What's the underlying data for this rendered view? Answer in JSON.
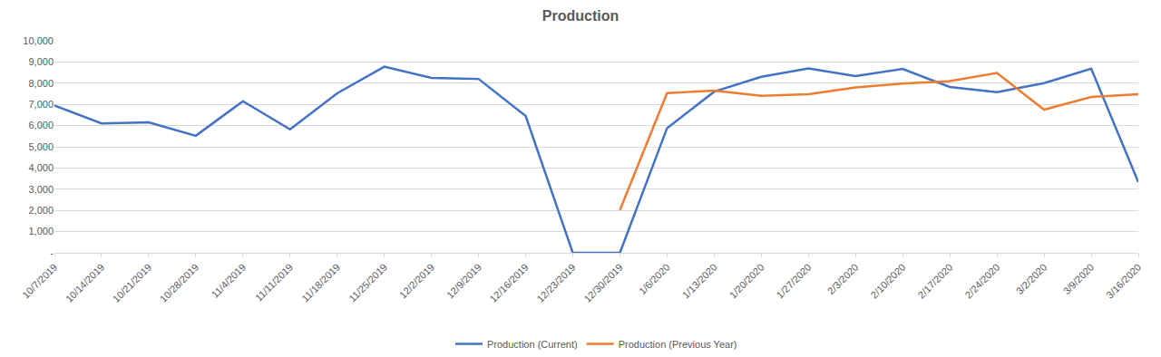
{
  "chart_data": {
    "type": "line",
    "title": "Production",
    "categories": [
      "10/7/2019",
      "10/14/2019",
      "10/21/2019",
      "10/28/2019",
      "11/4/2019",
      "11/11/2019",
      "11/18/2019",
      "11/25/2019",
      "12/2/2019",
      "12/9/2019",
      "12/16/2019",
      "12/23/2019",
      "12/30/2019",
      "1/6/2020",
      "1/13/2020",
      "1/20/2020",
      "1/27/2020",
      "2/3/2020",
      "2/10/2020",
      "2/17/2020",
      "2/24/2020",
      "3/2/2020",
      "3/9/2020",
      "3/16/2020"
    ],
    "series": [
      {
        "name": "Production (Current)",
        "color": "#4472c4",
        "values": [
          6950,
          6100,
          6150,
          5520,
          7150,
          5820,
          7520,
          8780,
          8250,
          8200,
          6450,
          0,
          0,
          5880,
          7600,
          8300,
          8700,
          8330,
          8670,
          7820,
          7580,
          8000,
          8680,
          3330
        ]
      },
      {
        "name": "Production (Previous Year)",
        "color": "#ed7d31",
        "values": [
          null,
          null,
          null,
          null,
          null,
          null,
          null,
          null,
          null,
          null,
          null,
          null,
          2020,
          7530,
          7650,
          7400,
          7480,
          7800,
          7980,
          8100,
          8480,
          6750,
          7350,
          7480
        ]
      }
    ],
    "ylim": [
      0,
      10000
    ],
    "yticks": [
      {
        "value": 0,
        "label": "-"
      },
      {
        "value": 1000,
        "label": "1,000"
      },
      {
        "value": 2000,
        "label": "2,000"
      },
      {
        "value": 3000,
        "label": "3,000"
      },
      {
        "value": 4000,
        "label": "4,000"
      },
      {
        "value": 5000,
        "label": "5,000"
      },
      {
        "value": 6000,
        "label": "6,000"
      },
      {
        "value": 7000,
        "label": "7,000"
      },
      {
        "value": 8000,
        "label": "8,000"
      },
      {
        "value": 9000,
        "label": "9,000"
      },
      {
        "value": 10000,
        "label": "10,000"
      }
    ],
    "grid": true,
    "legend": "bottom"
  }
}
